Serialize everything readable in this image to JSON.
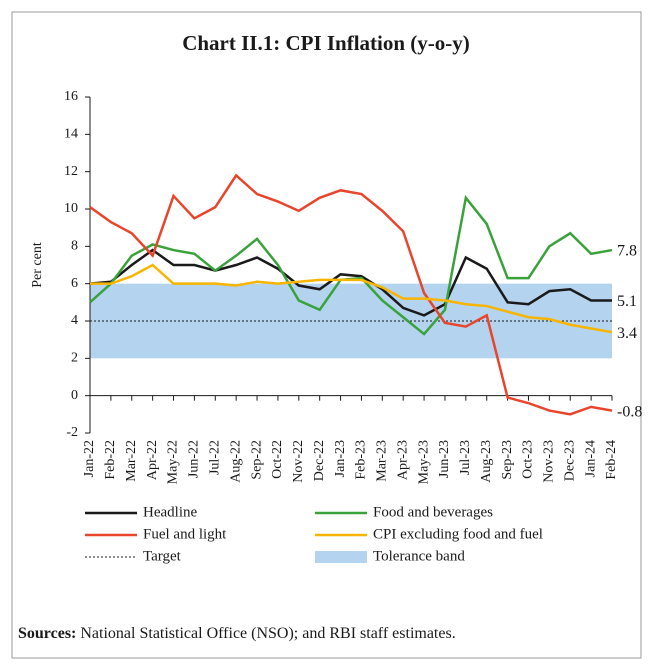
{
  "chart_data": {
    "type": "line",
    "title": "Chart II.1: CPI Inflation (y-o-y)",
    "ylabel": "Per cent",
    "categories": [
      "Jan-22",
      "Feb-22",
      "Mar-22",
      "Apr-22",
      "May-22",
      "Jun-22",
      "Jul-22",
      "Aug-22",
      "Sep-22",
      "Oct-22",
      "Nov-22",
      "Dec-22",
      "Jan-23",
      "Feb-23",
      "Mar-23",
      "Apr-23",
      "May-23",
      "Jun-23",
      "Jul-23",
      "Aug-23",
      "Sep-23",
      "Oct-23",
      "Nov-23",
      "Dec-23",
      "Jan-24",
      "Feb-24"
    ],
    "series": [
      {
        "name": "Headline",
        "color": "#1a1a1a",
        "values": [
          6.0,
          6.1,
          7.0,
          7.8,
          7.0,
          7.0,
          6.7,
          7.0,
          7.4,
          6.8,
          5.9,
          5.7,
          6.5,
          6.4,
          5.7,
          4.7,
          4.3,
          4.9,
          7.4,
          6.8,
          5.0,
          4.9,
          5.6,
          5.7,
          5.1,
          5.1
        ]
      },
      {
        "name": "Food and beverages",
        "color": "#3aa23a",
        "values": [
          5.0,
          6.0,
          7.5,
          8.1,
          7.8,
          7.6,
          6.7,
          7.5,
          8.4,
          7.0,
          5.1,
          4.6,
          6.2,
          6.3,
          5.1,
          4.2,
          3.3,
          4.6,
          10.6,
          9.2,
          6.3,
          6.3,
          8.0,
          8.7,
          7.6,
          7.8
        ]
      },
      {
        "name": "Fuel and light",
        "color": "#e8452c",
        "values": [
          10.1,
          9.3,
          8.7,
          7.5,
          10.7,
          9.5,
          10.1,
          11.8,
          10.8,
          10.4,
          9.9,
          10.6,
          11.0,
          10.8,
          9.9,
          8.8,
          5.5,
          3.9,
          3.7,
          4.3,
          -0.1,
          -0.4,
          -0.8,
          -1.0,
          -0.6,
          -0.8
        ]
      },
      {
        "name": "CPI excluding food and fuel",
        "color": "#f7b500",
        "values": [
          6.0,
          6.0,
          6.4,
          7.0,
          6.0,
          6.0,
          6.0,
          5.9,
          6.1,
          6.0,
          6.1,
          6.2,
          6.2,
          6.2,
          5.8,
          5.2,
          5.2,
          5.1,
          4.9,
          4.8,
          4.5,
          4.2,
          4.1,
          3.8,
          3.6,
          3.4
        ]
      }
    ],
    "target": {
      "name": "Target",
      "value": 4,
      "color": "#1a1a1a"
    },
    "tolerance_band": {
      "name": "Tolerance band",
      "range": [
        2,
        6
      ],
      "color": "#b3d3ef"
    },
    "ylim": [
      -2,
      16
    ],
    "yticks": [
      -2,
      0,
      2,
      4,
      6,
      8,
      10,
      12,
      14,
      16
    ],
    "sources_label": "Sources:",
    "sources_text": "National Statistical Office (NSO); and RBI staff estimates."
  }
}
